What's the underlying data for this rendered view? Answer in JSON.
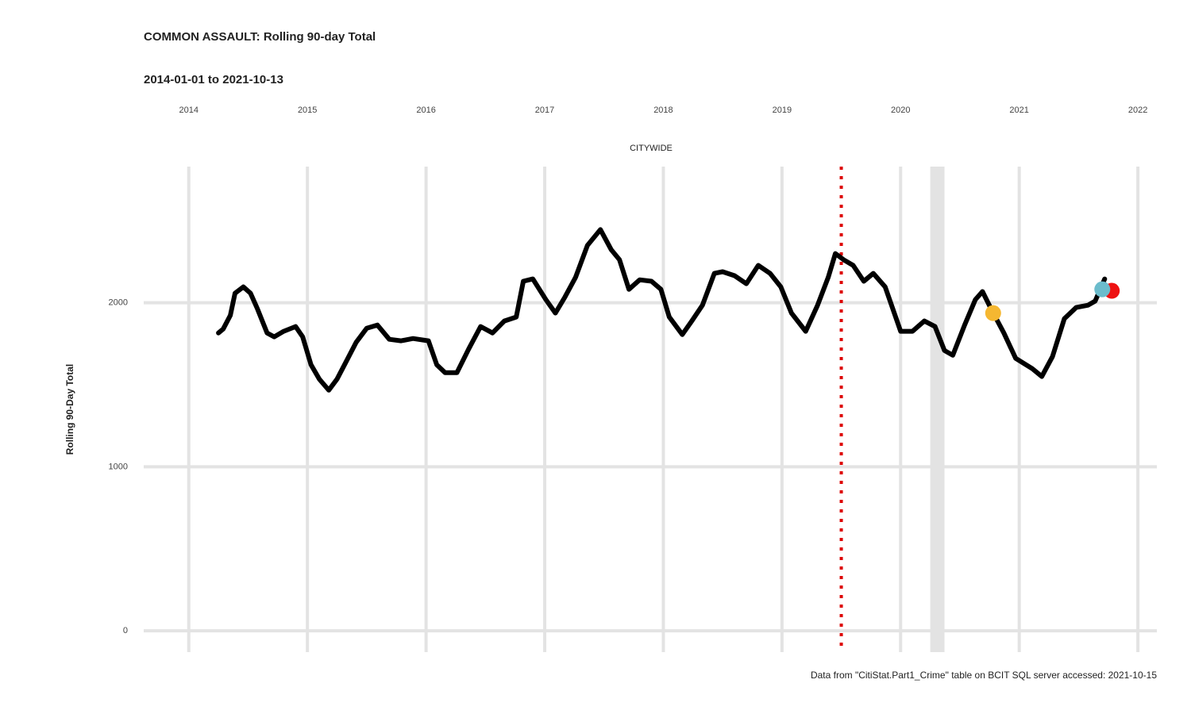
{
  "chart_data": {
    "type": "line",
    "title": "COMMON ASSAULT: Rolling 90-day Total",
    "subtitle": "2014-01-01 to 2021-10-13",
    "facet_label": "CITYWIDE",
    "y_label": "Rolling 90-Day Total",
    "caption": "Data from \"CitiStat.Part1_Crime\" table on BCIT SQL server accessed: 2021-10-15",
    "xlim": [
      2013.62,
      2022.16
    ],
    "xticks": [
      2014,
      2015,
      2016,
      2017,
      2018,
      2019,
      2020,
      2021,
      2022
    ],
    "ylim": [
      -130,
      2830
    ],
    "yticks": [
      0,
      1000,
      2000
    ],
    "grid": true,
    "color": "#000000",
    "x": [
      2014.25,
      2014.29,
      2014.35,
      2014.39,
      2014.46,
      2014.52,
      2014.58,
      2014.66,
      2014.72,
      2014.8,
      2014.9,
      2014.96,
      2015.03,
      2015.1,
      2015.18,
      2015.25,
      2015.32,
      2015.41,
      2015.5,
      2015.59,
      2015.69,
      2015.79,
      2015.89,
      2016.02,
      2016.09,
      2016.16,
      2016.26,
      2016.36,
      2016.46,
      2016.56,
      2016.66,
      2016.76,
      2016.82,
      2016.9,
      2017.01,
      2017.09,
      2017.17,
      2017.26,
      2017.36,
      2017.47,
      2017.56,
      2017.63,
      2017.71,
      2017.8,
      2017.9,
      2017.98,
      2018.05,
      2018.16,
      2018.24,
      2018.33,
      2018.43,
      2018.5,
      2018.6,
      2018.7,
      2018.8,
      2018.9,
      2018.99,
      2019.08,
      2019.2,
      2019.3,
      2019.39,
      2019.45,
      2019.52,
      2019.6,
      2019.69,
      2019.77,
      2019.87,
      2020.0,
      2020.1,
      2020.2,
      2020.29,
      2020.37,
      2020.44,
      2020.54,
      2020.63,
      2020.69,
      2020.77,
      2020.87,
      2020.97,
      2021.11,
      2021.19,
      2021.28,
      2021.38,
      2021.48,
      2021.58,
      2021.64,
      2021.72
    ],
    "values": [
      1816,
      1840,
      1923,
      2058,
      2097,
      2058,
      1961,
      1816,
      1792,
      1826,
      1855,
      1792,
      1622,
      1535,
      1467,
      1535,
      1632,
      1758,
      1845,
      1864,
      1777,
      1768,
      1782,
      1768,
      1622,
      1574,
      1574,
      1719,
      1855,
      1816,
      1889,
      1913,
      2131,
      2145,
      2019,
      1937,
      2034,
      2155,
      2349,
      2446,
      2324,
      2262,
      2082,
      2140,
      2131,
      2082,
      1913,
      1806,
      1889,
      1985,
      2179,
      2189,
      2165,
      2116,
      2228,
      2179,
      2097,
      1937,
      1826,
      1985,
      2155,
      2300,
      2262,
      2228,
      2131,
      2179,
      2097,
      1826,
      1826,
      1889,
      1855,
      1709,
      1680,
      1864,
      2019,
      2068,
      1952,
      1816,
      1661,
      1598,
      1550,
      1671,
      1903,
      1971,
      1985,
      2010,
      2145
    ],
    "vline": {
      "x": 2019.5,
      "color": "#dd0000"
    },
    "shaded_range": [
      2020.25,
      2020.37
    ],
    "points": [
      {
        "x": 2020.78,
        "value": 1937,
        "color": "#f5b731"
      },
      {
        "x": 2021.78,
        "value": 2073,
        "color": "#ee1111"
      },
      {
        "x": 2021.7,
        "value": 2082,
        "color": "#6bbccc"
      }
    ]
  }
}
